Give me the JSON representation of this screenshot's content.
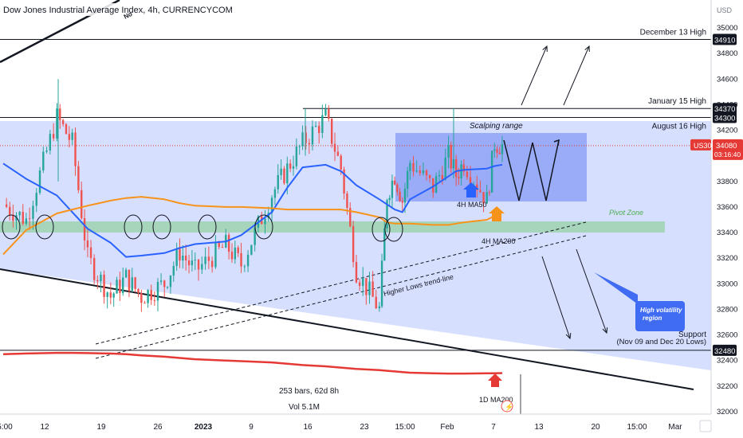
{
  "header": {
    "title": "Dow Jones Industrial Average Index, 4h, CURRENCYCOM",
    "trend_label_fragment": "No"
  },
  "price_axis": {
    "currency": "USD",
    "ticks": [
      35000,
      34800,
      34600,
      34400,
      34200,
      34000,
      33800,
      33600,
      33400,
      33200,
      33000,
      32800,
      32600,
      32400,
      32200,
      32000
    ]
  },
  "time_axis": {
    "ticks": [
      {
        "label": "5:00",
        "at": "Dec 5"
      },
      {
        "label": "12",
        "at": "Dec 12"
      },
      {
        "label": "19",
        "at": "Dec 19"
      },
      {
        "label": "26",
        "at": "Dec 26"
      },
      {
        "label": "2023",
        "at": "Jan 1",
        "bold": true
      },
      {
        "label": "9",
        "at": "Jan 9"
      },
      {
        "label": "16",
        "at": "Jan 16"
      },
      {
        "label": "23",
        "at": "Jan 23"
      },
      {
        "label": "15:00",
        "at": "Jan 26"
      },
      {
        "label": "Feb",
        "at": "Feb 1"
      },
      {
        "label": "7",
        "at": "Feb 7"
      },
      {
        "label": "13",
        "at": "Feb 13"
      },
      {
        "label": "20",
        "at": "Feb 20"
      },
      {
        "label": "15:00",
        "at": "Feb 24"
      },
      {
        "label": "Mar",
        "at": "Mar 1"
      }
    ]
  },
  "levels": [
    {
      "price": 34910,
      "tag": "34910",
      "label": "December 13 High"
    },
    {
      "price": 34370,
      "tag": "34370",
      "label": "January 15 High"
    },
    {
      "price": 34300,
      "tag": "34300",
      "label": "August 16 High"
    },
    {
      "price": 32480,
      "tag": "32480",
      "label": "Support"
    }
  ],
  "support_sub": "(Nov 09 and Dec 20 Lows)",
  "current_price": {
    "symbol": "US30",
    "price": "34080",
    "countdown": "03:16:40"
  },
  "annotations": {
    "scalping": "Scalping range",
    "ma50": "4H MA50",
    "ma200": "4H MA200",
    "pivot": "Pivot Zone",
    "higher_lows": "Higher Lows trend-line",
    "ma1d": "1D MA200",
    "high_vol": [
      "High volatility",
      "region"
    ],
    "bars_info": "253 bars, 62d 8h",
    "vol_info": "Vol 5.1M"
  },
  "colors": {
    "price_line": "#e53935",
    "ma50": "#2962ff",
    "ma200": "#f7931a",
    "ma1d": "#e53935",
    "zone": "#c9d4ff",
    "pivot": "#9fd3b0",
    "up": "#26a69a",
    "down": "#ef5350",
    "tag_bg": "#131722"
  },
  "chart_data": {
    "type": "candlestick",
    "title": "Dow Jones Industrial Average Index, 4h, CURRENCYCOM",
    "x": [
      "Dec 5",
      "Dec 8",
      "Dec 12",
      "Dec 14",
      "Dec 16",
      "Dec 19",
      "Dec 21",
      "Dec 23",
      "Dec 26",
      "Dec 28",
      "Dec 30",
      "Jan 3",
      "Jan 5",
      "Jan 9",
      "Jan 11",
      "Jan 13",
      "Jan 16",
      "Jan 18",
      "Jan 20",
      "Jan 23",
      "Jan 24",
      "Jan 25",
      "Jan 26",
      "Jan 27",
      "Jan 30",
      "Feb 1",
      "Feb 2",
      "Feb 3",
      "Feb 6",
      "Feb 7",
      "Feb 8"
    ],
    "close": [
      33620,
      33500,
      34300,
      34100,
      33200,
      32900,
      33050,
      32900,
      33000,
      33250,
      33100,
      33300,
      33150,
      33700,
      33900,
      34100,
      34300,
      33900,
      33100,
      32800,
      33700,
      33850,
      33650,
      33950,
      33750,
      34000,
      33850,
      33950,
      33650,
      34100,
      34080
    ],
    "ylim": [
      32000,
      35000
    ],
    "series": [
      {
        "name": "4H MA50",
        "values": [
          33940,
          33820,
          33690,
          33560,
          33430,
          33320,
          33210,
          33220,
          33240,
          33280,
          33310,
          33330,
          33380,
          33560,
          33750,
          33910,
          33930,
          33880,
          33770,
          33660,
          33620,
          33580,
          33560,
          33660,
          33760,
          33840,
          33880,
          33890,
          33900,
          33920,
          33930
        ]
      },
      {
        "name": "4H MA200",
        "values": [
          33230,
          33420,
          33550,
          33580,
          33610,
          33650,
          33670,
          33680,
          33660,
          33630,
          33610,
          33600,
          33600,
          33590,
          33580,
          33580,
          33580,
          33580,
          33560,
          33520,
          33480,
          33470,
          33470,
          33470,
          33460,
          33460,
          33470,
          33480,
          33500,
          33530,
          33560
        ]
      },
      {
        "name": "1D MA200",
        "values": [
          32450,
          32455,
          32460,
          32460,
          32458,
          32455,
          32450,
          32440,
          32430,
          32420,
          32410,
          32400,
          32395,
          32385,
          32375,
          32365,
          32355,
          32345,
          32335,
          32325,
          32320,
          32315,
          32310,
          32305,
          32300,
          32298,
          32298,
          32298,
          32300,
          32300,
          32302
        ]
      }
    ],
    "legend": "none",
    "grid": false
  }
}
